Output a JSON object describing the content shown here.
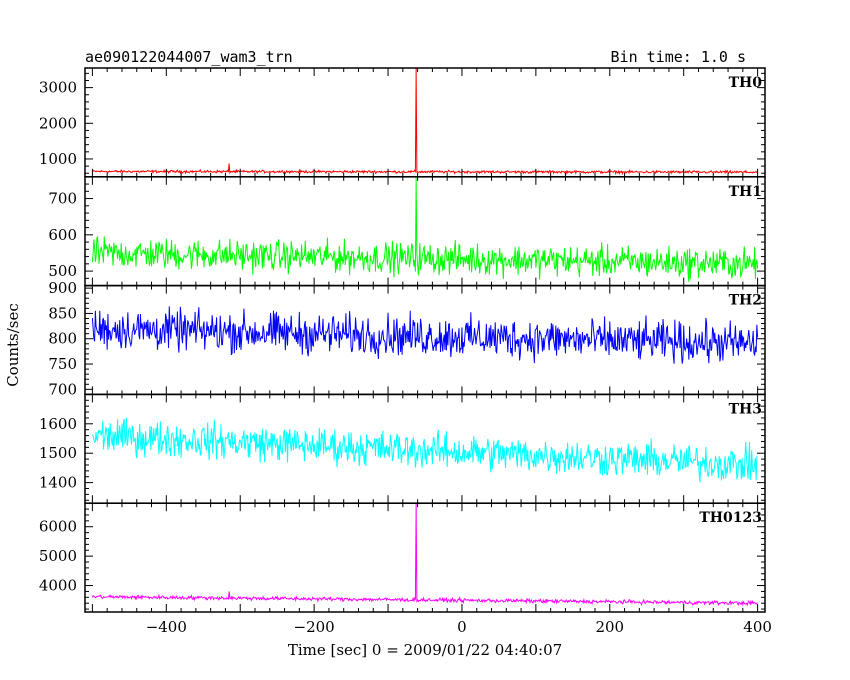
{
  "chart_data": {
    "type": "line",
    "title": "ae090122044007_wam3_trn",
    "subtitle": "Bin time: 1.0 s",
    "xlabel": "Time [sec] 0 = 2009/01/22 04:40:07",
    "ylabel": "Counts/sec",
    "xlim": [
      -510,
      410
    ],
    "xticks": [
      -400,
      -200,
      0,
      200,
      400
    ],
    "xtick_labels": [
      "−400",
      "−200",
      "0",
      "200",
      "400"
    ],
    "grid": false,
    "panels": [
      {
        "name": "TH0",
        "color": "#ff0000",
        "ylim": [
          500,
          3550
        ],
        "yticks": [
          1000,
          2000,
          3000
        ],
        "ytick_labels": [
          "1000",
          "2000",
          "3000"
        ],
        "series": {
          "name": "TH0",
          "x_range": [
            -500,
            400
          ],
          "baseline_start": 650,
          "baseline_end": 630,
          "noise_amplitude": 25,
          "spikes": [
            {
              "x": -62,
              "y": 3550
            },
            {
              "x": -315,
              "y": 870
            }
          ]
        }
      },
      {
        "name": "TH1",
        "color": "#00ff00",
        "ylim": [
          460,
          760
        ],
        "yticks": [
          500,
          600,
          700
        ],
        "ytick_labels": [
          "500",
          "600",
          "700"
        ],
        "series": {
          "name": "TH1",
          "x_range": [
            -500,
            400
          ],
          "baseline_start": 550,
          "baseline_end": 520,
          "noise_amplitude": 30,
          "spikes": [
            {
              "x": -62,
              "y": 760
            }
          ]
        }
      },
      {
        "name": "TH2",
        "color": "#0000ff",
        "ylim": [
          690,
          905
        ],
        "yticks": [
          700,
          750,
          800,
          850,
          900
        ],
        "ytick_labels": [
          "700",
          "750",
          "800",
          "850",
          "900"
        ],
        "series": {
          "name": "TH2",
          "x_range": [
            -500,
            400
          ],
          "baseline_start": 820,
          "baseline_end": 790,
          "noise_amplitude": 28
        }
      },
      {
        "name": "TH3",
        "color": "#00ffff",
        "ylim": [
          1330,
          1700
        ],
        "yticks": [
          1400,
          1500,
          1600
        ],
        "ytick_labels": [
          "1400",
          "1500",
          "1600"
        ],
        "series": {
          "name": "TH3",
          "x_range": [
            -500,
            400
          ],
          "baseline_start": 1560,
          "baseline_end": 1460,
          "noise_amplitude": 42
        }
      },
      {
        "name": "TH0123",
        "color": "#ff00ff",
        "ylim": [
          3100,
          6800
        ],
        "yticks": [
          4000,
          5000,
          6000
        ],
        "ytick_labels": [
          "4000",
          "5000",
          "6000"
        ],
        "series": {
          "name": "TH0123",
          "x_range": [
            -500,
            400
          ],
          "baseline_start": 3620,
          "baseline_end": 3400,
          "noise_amplitude": 45,
          "spikes": [
            {
              "x": -62,
              "y": 6800
            },
            {
              "x": -315,
              "y": 3800
            }
          ]
        }
      }
    ]
  }
}
